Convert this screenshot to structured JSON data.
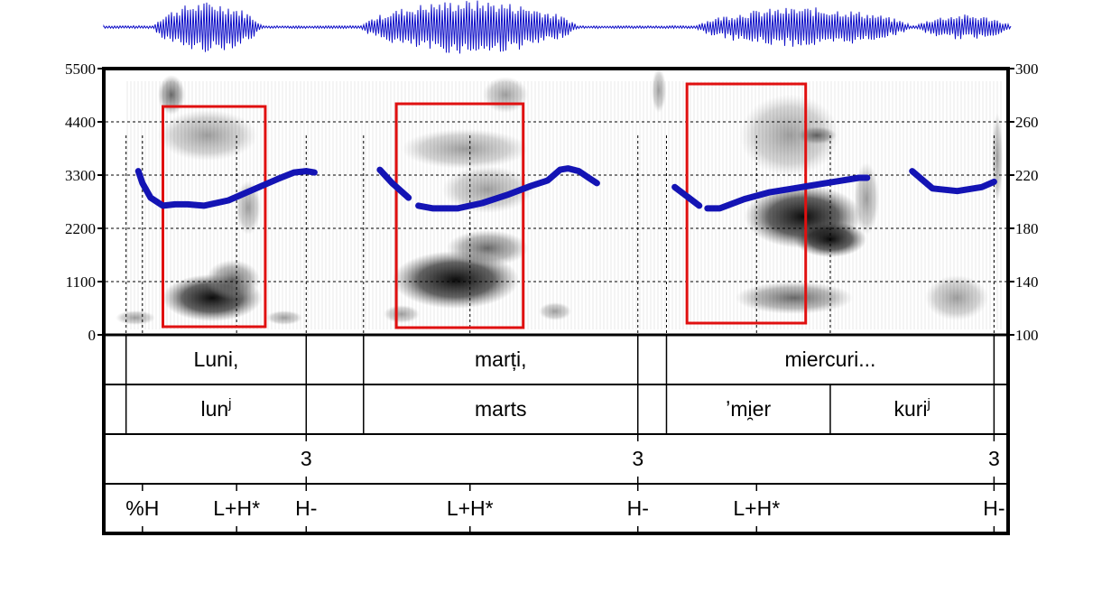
{
  "chart_data": {
    "type": "spectrogram",
    "title": "",
    "left_axis": {
      "label": "",
      "ticks": [
        0,
        1100,
        2200,
        3300,
        4400,
        5500
      ],
      "ylim": [
        0,
        5500
      ]
    },
    "right_axis": {
      "label": "",
      "ticks": [
        100,
        140,
        180,
        220,
        260,
        300
      ],
      "ylim": [
        100,
        300
      ]
    },
    "pitch_segments": [
      {
        "x": [
          0.4,
          0.45,
          0.55,
          0.7,
          0.85,
          1.0,
          1.2,
          1.5,
          1.8,
          2.1,
          2.3,
          2.45,
          2.55
        ],
        "y": [
          223,
          214,
          203,
          197,
          198,
          198,
          197,
          201,
          209,
          217,
          222,
          223,
          222
        ]
      },
      {
        "x": [
          3.35,
          3.5,
          3.7
        ],
        "y": [
          224,
          214,
          203
        ]
      },
      {
        "x": [
          3.82,
          4.0,
          4.3,
          4.6,
          4.9,
          5.2,
          5.4,
          5.55,
          5.65,
          5.78,
          5.9,
          6.0
        ],
        "y": [
          197,
          195,
          195,
          199,
          205,
          212,
          216,
          224,
          225,
          223,
          218,
          214
        ]
      },
      {
        "x": [
          6.95,
          7.1,
          7.25
        ],
        "y": [
          211,
          204,
          197
        ]
      },
      {
        "x": [
          7.35,
          7.5,
          7.8,
          8.1,
          8.4,
          8.7,
          9.0,
          9.2,
          9.3
        ],
        "y": [
          195,
          195,
          202,
          207,
          210,
          213,
          216,
          218,
          218
        ]
      },
      {
        "x": [
          9.85,
          10.1,
          10.4,
          10.7,
          10.85
        ],
        "y": [
          223,
          210,
          208,
          211,
          215
        ]
      }
    ],
    "annotations_boxes": [
      {
        "x": [
          0.7,
          1.95
        ]
      },
      {
        "x": [
          3.55,
          5.1
        ]
      },
      {
        "x": [
          7.1,
          8.55
        ]
      }
    ],
    "tiers": [
      {
        "intervals": [
          {
            "text": "Luni,",
            "start": 0.25,
            "end": 2.45
          },
          {
            "text": "marți,",
            "start": 3.15,
            "end": 6.5
          },
          {
            "text": "miercuri...",
            "start": 6.85,
            "end": 10.85
          }
        ]
      },
      {
        "intervals": [
          {
            "text": "lun",
            "sup": "j",
            "start": 0.25,
            "end": 2.45
          },
          {
            "text": "marts",
            "start": 3.15,
            "end": 6.5
          },
          {
            "text": "ʼmi̯er",
            "start": 6.85,
            "end": 8.85
          },
          {
            "text": "kuri",
            "sup": "j",
            "start": 8.85,
            "end": 10.85
          }
        ]
      },
      {
        "points": [
          {
            "time": 2.45,
            "text": "3"
          },
          {
            "time": 6.5,
            "text": "3"
          },
          {
            "time": 10.85,
            "text": "3"
          }
        ]
      },
      {
        "points": [
          {
            "time": 0.45,
            "text": "%H"
          },
          {
            "time": 1.6,
            "text": "L+H*"
          },
          {
            "time": 2.45,
            "text": "H-"
          },
          {
            "time": 4.45,
            "text": "L+H*"
          },
          {
            "time": 6.5,
            "text": "H-"
          },
          {
            "time": 7.95,
            "text": "L+H*"
          },
          {
            "time": 10.85,
            "text": "H-"
          }
        ]
      }
    ],
    "time_range": [
      0,
      11
    ]
  }
}
